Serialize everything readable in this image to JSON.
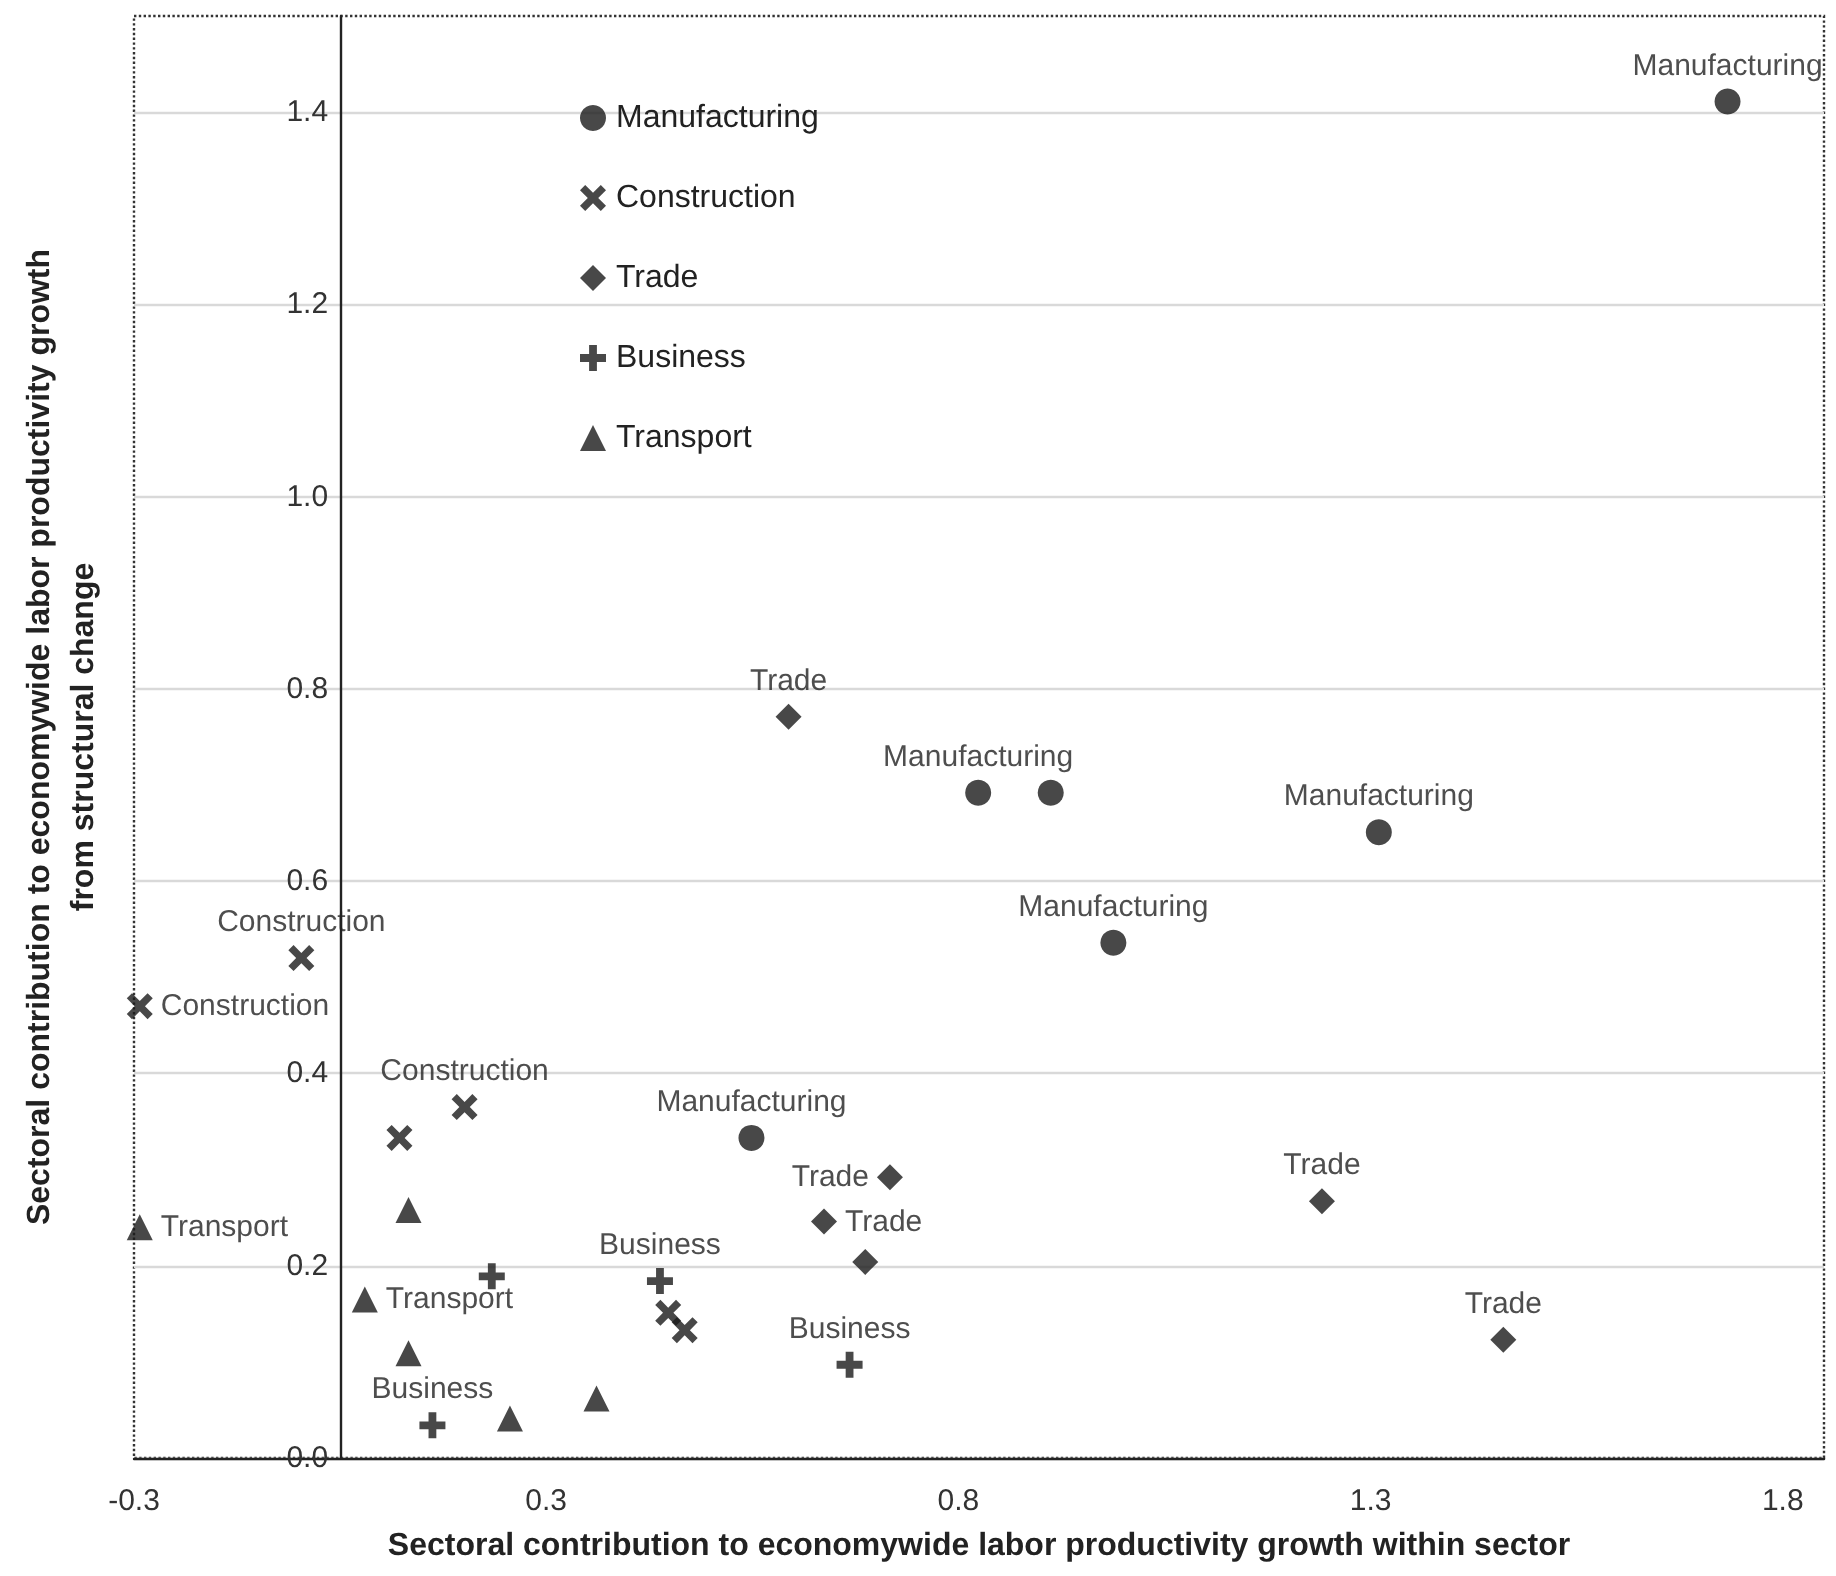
{
  "chart_data": {
    "type": "scatter",
    "xlabel": "Sectoral contribution to economywide labor productivity growth within sector",
    "ylabel": "Sectoral contribution to economywide labor productivity growth\nfrom structural change",
    "xlim": [
      -0.25,
      1.8
    ],
    "ylim": [
      0,
      1.5
    ],
    "xticks": [
      {
        "value": -0.25,
        "label": "-0.3"
      },
      {
        "value": 0.25,
        "label": "0.3"
      },
      {
        "value": 0.75,
        "label": "0.8"
      },
      {
        "value": 1.25,
        "label": "1.3"
      },
      {
        "value": 1.75,
        "label": "1.8"
      }
    ],
    "yticks": [
      {
        "value": 0,
        "label": "0.0"
      },
      {
        "value": 0.2,
        "label": "0.2"
      },
      {
        "value": 0.4,
        "label": "0.4"
      },
      {
        "value": 0.6,
        "label": "0.6"
      },
      {
        "value": 0.8,
        "label": "0.8"
      },
      {
        "value": 1.0,
        "label": "1.0"
      },
      {
        "value": 1.2,
        "label": "1.2"
      },
      {
        "value": 1.4,
        "label": "1.4"
      }
    ],
    "grid": "y",
    "legend": "top left",
    "series": [
      {
        "name": "Manufacturing",
        "color": "#1a1a1a",
        "marker": "circle",
        "x": [
          1.683,
          0.774,
          0.862,
          1.26,
          0.938,
          0.499
        ],
        "values": [
          1.411,
          0.692,
          0.692,
          0.651,
          0.536,
          0.333
        ],
        "value_labels": [
          "Manufacturing",
          "Manufacturing",
          null,
          "Manufacturing",
          "Manufacturing",
          "Manufacturing"
        ]
      },
      {
        "name": "Construction",
        "color": "#1a1a1a",
        "marker": "x",
        "x": [
          -0.047,
          -0.243,
          0.151,
          0.072,
          0.398,
          0.418
        ],
        "values": [
          0.52,
          0.47,
          0.365,
          0.333,
          0.151,
          0.133
        ],
        "value_labels": [
          "Construction",
          "Construction",
          "Construction",
          null,
          null,
          null
        ]
      },
      {
        "name": "Trade",
        "color": "#1a1a1a",
        "marker": "diamond",
        "x": [
          0.544,
          0.667,
          0.587,
          0.637,
          1.191,
          1.411
        ],
        "values": [
          0.771,
          0.292,
          0.246,
          0.204,
          0.267,
          0.123
        ],
        "value_labels": [
          "Trade",
          "Trade",
          "Trade",
          null,
          "Trade",
          "Trade"
        ]
      },
      {
        "name": "Business",
        "color": "#1a1a1a",
        "marker": "plus",
        "x": [
          0.184,
          0.112,
          0.388,
          0.618
        ],
        "values": [
          0.189,
          0.034,
          0.184,
          0.097
        ],
        "value_labels": [
          null,
          "Business",
          "Business",
          "Business"
        ]
      },
      {
        "name": "Transport",
        "color": "#1a1a1a",
        "marker": "triangle",
        "x": [
          -0.243,
          0.083,
          0.03,
          0.083,
          0.206,
          0.311
        ],
        "values": [
          0.24,
          0.258,
          0.165,
          0.109,
          0.041,
          0.062
        ],
        "value_labels": [
          "Transport",
          null,
          "Transport",
          null,
          null,
          null
        ]
      }
    ]
  }
}
